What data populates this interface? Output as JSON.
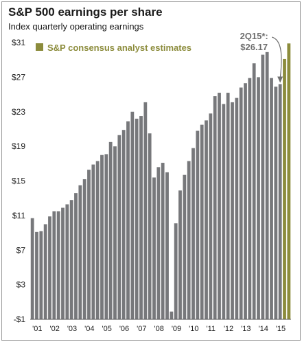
{
  "title": "S&P 500 earnings per share",
  "subtitle": "Index quarterly operating earnings",
  "colors": {
    "historical": "#77787b",
    "estimate": "#8c8c3c",
    "text": "#1a1a1a",
    "axis": "#555555"
  },
  "chart_data": {
    "type": "bar",
    "title": "S&P 500 earnings per share",
    "subtitle": "Index quarterly operating earnings",
    "xlabel": "",
    "ylabel": "",
    "ylim": [
      -1,
      31
    ],
    "yticks": [
      -1,
      3,
      7,
      11,
      15,
      19,
      23,
      27,
      31
    ],
    "ytick_labels": [
      "-$1",
      "$3",
      "$7",
      "$11",
      "$15",
      "$19",
      "$23",
      "$27",
      "$31"
    ],
    "xtick_labels": [
      "'01",
      "'02",
      "'03",
      "'04",
      "'05",
      "'06",
      "'07",
      "'08",
      "'09",
      "'10",
      "'11",
      "'12",
      "'13",
      "'14",
      "'15"
    ],
    "grid": false,
    "legend": {
      "label": "S&P consensus analyst estimates",
      "placement": "top-left"
    },
    "annotation": {
      "label": "2Q15*:",
      "value": "$26.17"
    },
    "series": [
      {
        "name": "",
        "values": [
          10.7,
          9.1,
          9.2,
          10.0,
          10.9,
          11.5,
          11.5,
          11.9,
          12.3,
          12.8,
          13.6,
          14.5,
          15.2,
          16.3,
          16.9,
          17.3,
          18.0,
          18.1,
          19.5,
          19.0,
          20.3,
          20.9,
          21.9,
          23.0,
          22.2,
          22.5,
          24.1,
          20.5,
          15.4,
          16.6,
          17.1,
          16.0,
          -0.1,
          10.1,
          13.9,
          15.7,
          17.3,
          18.8,
          20.8,
          21.5,
          22.0,
          22.8,
          24.8,
          25.2,
          23.9,
          25.2,
          24.1,
          24.6,
          25.8,
          26.3,
          26.9,
          28.6,
          27.0,
          29.6,
          29.9,
          26.9,
          25.9,
          26.2
        ],
        "type": "historical"
      },
      {
        "name": "S&P consensus analyst estimates",
        "values": [
          29.1,
          30.9
        ],
        "type": "estimate"
      }
    ]
  }
}
